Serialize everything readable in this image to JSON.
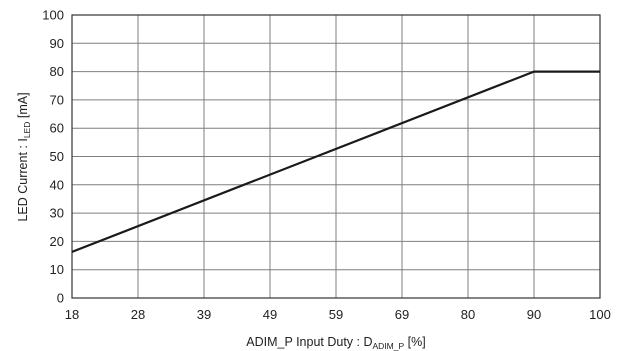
{
  "chart_data": {
    "type": "line",
    "title": "",
    "xlabel": {
      "main": "ADIM_P Input Duty : D",
      "sub": "ADIM_P",
      "suffix": " [%]"
    },
    "ylabel": {
      "main": "LED Current : I",
      "sub": "LED",
      "suffix": " [mA]"
    },
    "x_ticks": [
      "18",
      "28",
      "39",
      "49",
      "59",
      "69",
      "80",
      "90",
      "100"
    ],
    "y_ticks": [
      "0",
      "10",
      "20",
      "30",
      "40",
      "50",
      "60",
      "70",
      "80",
      "90",
      "100"
    ],
    "xlim": [
      18,
      100
    ],
    "ylim": [
      0,
      100
    ],
    "grid": true,
    "legend": "none",
    "series": [
      {
        "x": [
          18,
          90,
          100
        ],
        "y": [
          16.3,
          80,
          80
        ],
        "color": "#1a1a1a"
      }
    ]
  }
}
